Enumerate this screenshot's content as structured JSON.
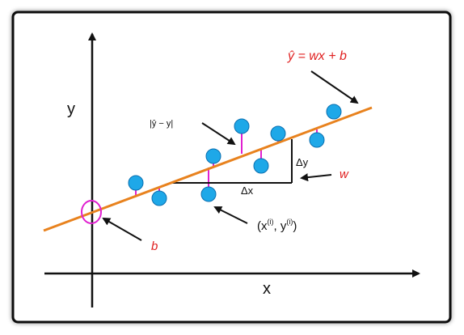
{
  "labels": {
    "y_axis": "y",
    "x_axis": "x",
    "equation": "ŷ = wx + b",
    "residual": "|ŷ − y|",
    "delta_y": "Δy",
    "delta_x": "Δx",
    "slope": "w",
    "intercept": "b",
    "point_x": "(x",
    "point_sup_i1": "(i)",
    "point_mid": ", y",
    "point_sup_i2": "(i)",
    "point_close": ")"
  },
  "colors": {
    "regression_line": "#e8821e",
    "point_fill": "#1ea8e8",
    "point_stroke": "#0a6fb0",
    "residual": "#e020d0",
    "annotation": "#e02020",
    "axis": "#111111",
    "frame": "#111111"
  }
}
